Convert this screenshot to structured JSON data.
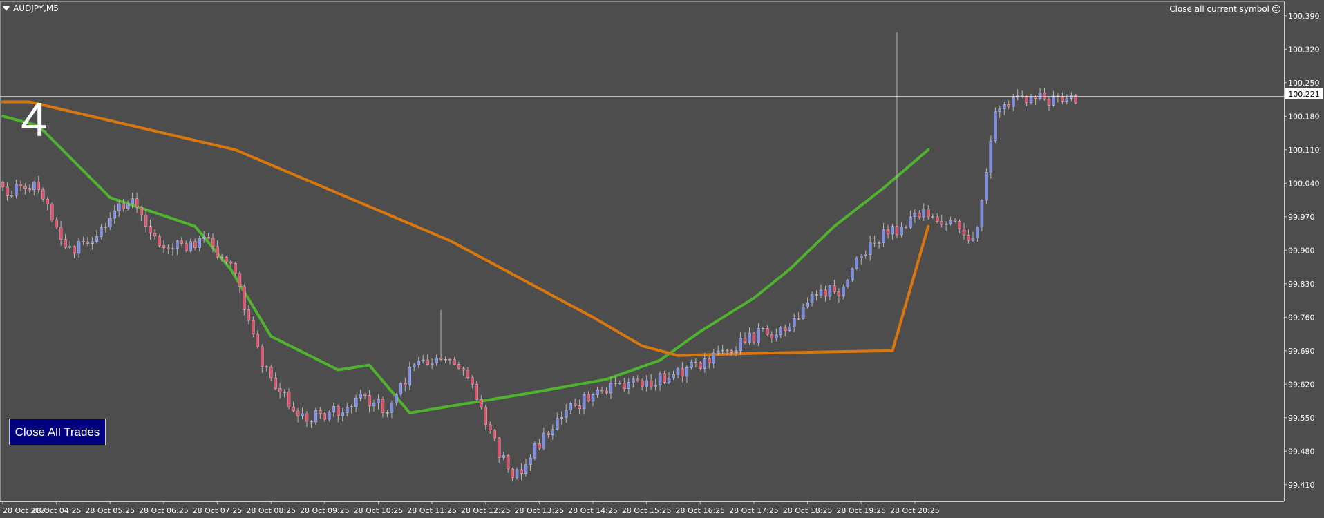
{
  "symbol": "AUDJPY,M5",
  "close_symbol_label": "Close all current symbol",
  "big_number": "4",
  "close_all_button": "Close All Trades",
  "current_price": "100.221",
  "colors": {
    "background": "#4d4d4d",
    "grid_text": "#ffffff",
    "bull_candle": "#7b8ce8",
    "bear_candle": "#e0506a",
    "ma_fast": "#4fb32f",
    "ma_slow": "#d9770f",
    "button_bg": "#000080"
  },
  "chart_data": {
    "type": "candlestick",
    "timeframe": "M5",
    "ylim": [
      99.375,
      100.42
    ],
    "y_ticks": [
      "100.390",
      "100.320",
      "100.250",
      "100.180",
      "100.110",
      "100.040",
      "99.970",
      "99.900",
      "99.830",
      "99.760",
      "99.690",
      "99.620",
      "99.550",
      "99.480",
      "99.410"
    ],
    "x_ticks": [
      "28 Oct 2025",
      "28 Oct 04:25",
      "28 Oct 05:25",
      "28 Oct 06:25",
      "28 Oct 07:25",
      "28 Oct 08:25",
      "28 Oct 09:25",
      "28 Oct 10:25",
      "28 Oct 11:25",
      "28 Oct 12:25",
      "28 Oct 13:25",
      "28 Oct 14:25",
      "28 Oct 15:25",
      "28 Oct 16:25",
      "28 Oct 17:25",
      "28 Oct 18:25",
      "28 Oct 19:25",
      "28 Oct 20:25"
    ],
    "price_line": 100.221,
    "anchors": [
      [
        0,
        100.02
      ],
      [
        8,
        100.03
      ],
      [
        14,
        99.9
      ],
      [
        20,
        99.92
      ],
      [
        28,
        100.01
      ],
      [
        36,
        99.9
      ],
      [
        46,
        99.92
      ],
      [
        52,
        99.85
      ],
      [
        58,
        99.66
      ],
      [
        66,
        99.55
      ],
      [
        74,
        99.56
      ],
      [
        80,
        99.59
      ],
      [
        86,
        99.57
      ],
      [
        92,
        99.66
      ],
      [
        98,
        99.67
      ],
      [
        104,
        99.64
      ],
      [
        110,
        99.5
      ],
      [
        114,
        99.42
      ],
      [
        120,
        99.5
      ],
      [
        126,
        99.56
      ],
      [
        134,
        99.61
      ],
      [
        142,
        99.62
      ],
      [
        150,
        99.64
      ],
      [
        158,
        99.67
      ],
      [
        164,
        99.7
      ],
      [
        170,
        99.73
      ],
      [
        176,
        99.73
      ],
      [
        180,
        99.8
      ],
      [
        188,
        99.82
      ],
      [
        194,
        99.92
      ],
      [
        200,
        99.94
      ],
      [
        206,
        99.98
      ],
      [
        212,
        99.96
      ],
      [
        216,
        99.92
      ],
      [
        218,
        99.95
      ],
      [
        222,
        100.2
      ],
      [
        230,
        100.22
      ],
      [
        240,
        100.21
      ]
    ],
    "overlay_lines": [
      {
        "key": "ma_fast",
        "points": [
          [
            0,
            100.18
          ],
          [
            8,
            100.16
          ],
          [
            24,
            100.01
          ],
          [
            43,
            99.95
          ],
          [
            51,
            99.86
          ],
          [
            60,
            99.72
          ],
          [
            75,
            99.65
          ],
          [
            82,
            99.66
          ],
          [
            91,
            99.56
          ],
          [
            117,
            99.6
          ],
          [
            135,
            99.63
          ],
          [
            147,
            99.67
          ],
          [
            156,
            99.73
          ],
          [
            168,
            99.8
          ],
          [
            176,
            99.86
          ],
          [
            186,
            99.95
          ],
          [
            197,
            100.03
          ],
          [
            207,
            100.11
          ]
        ]
      },
      {
        "key": "ma_slow",
        "points": [
          [
            0,
            100.21
          ],
          [
            6,
            100.21
          ],
          [
            52,
            100.11
          ],
          [
            100,
            99.92
          ],
          [
            132,
            99.76
          ],
          [
            143,
            99.7
          ],
          [
            151,
            99.68
          ],
          [
            170,
            99.685
          ],
          [
            199,
            99.69
          ],
          [
            207,
            99.95
          ]
        ]
      }
    ]
  }
}
